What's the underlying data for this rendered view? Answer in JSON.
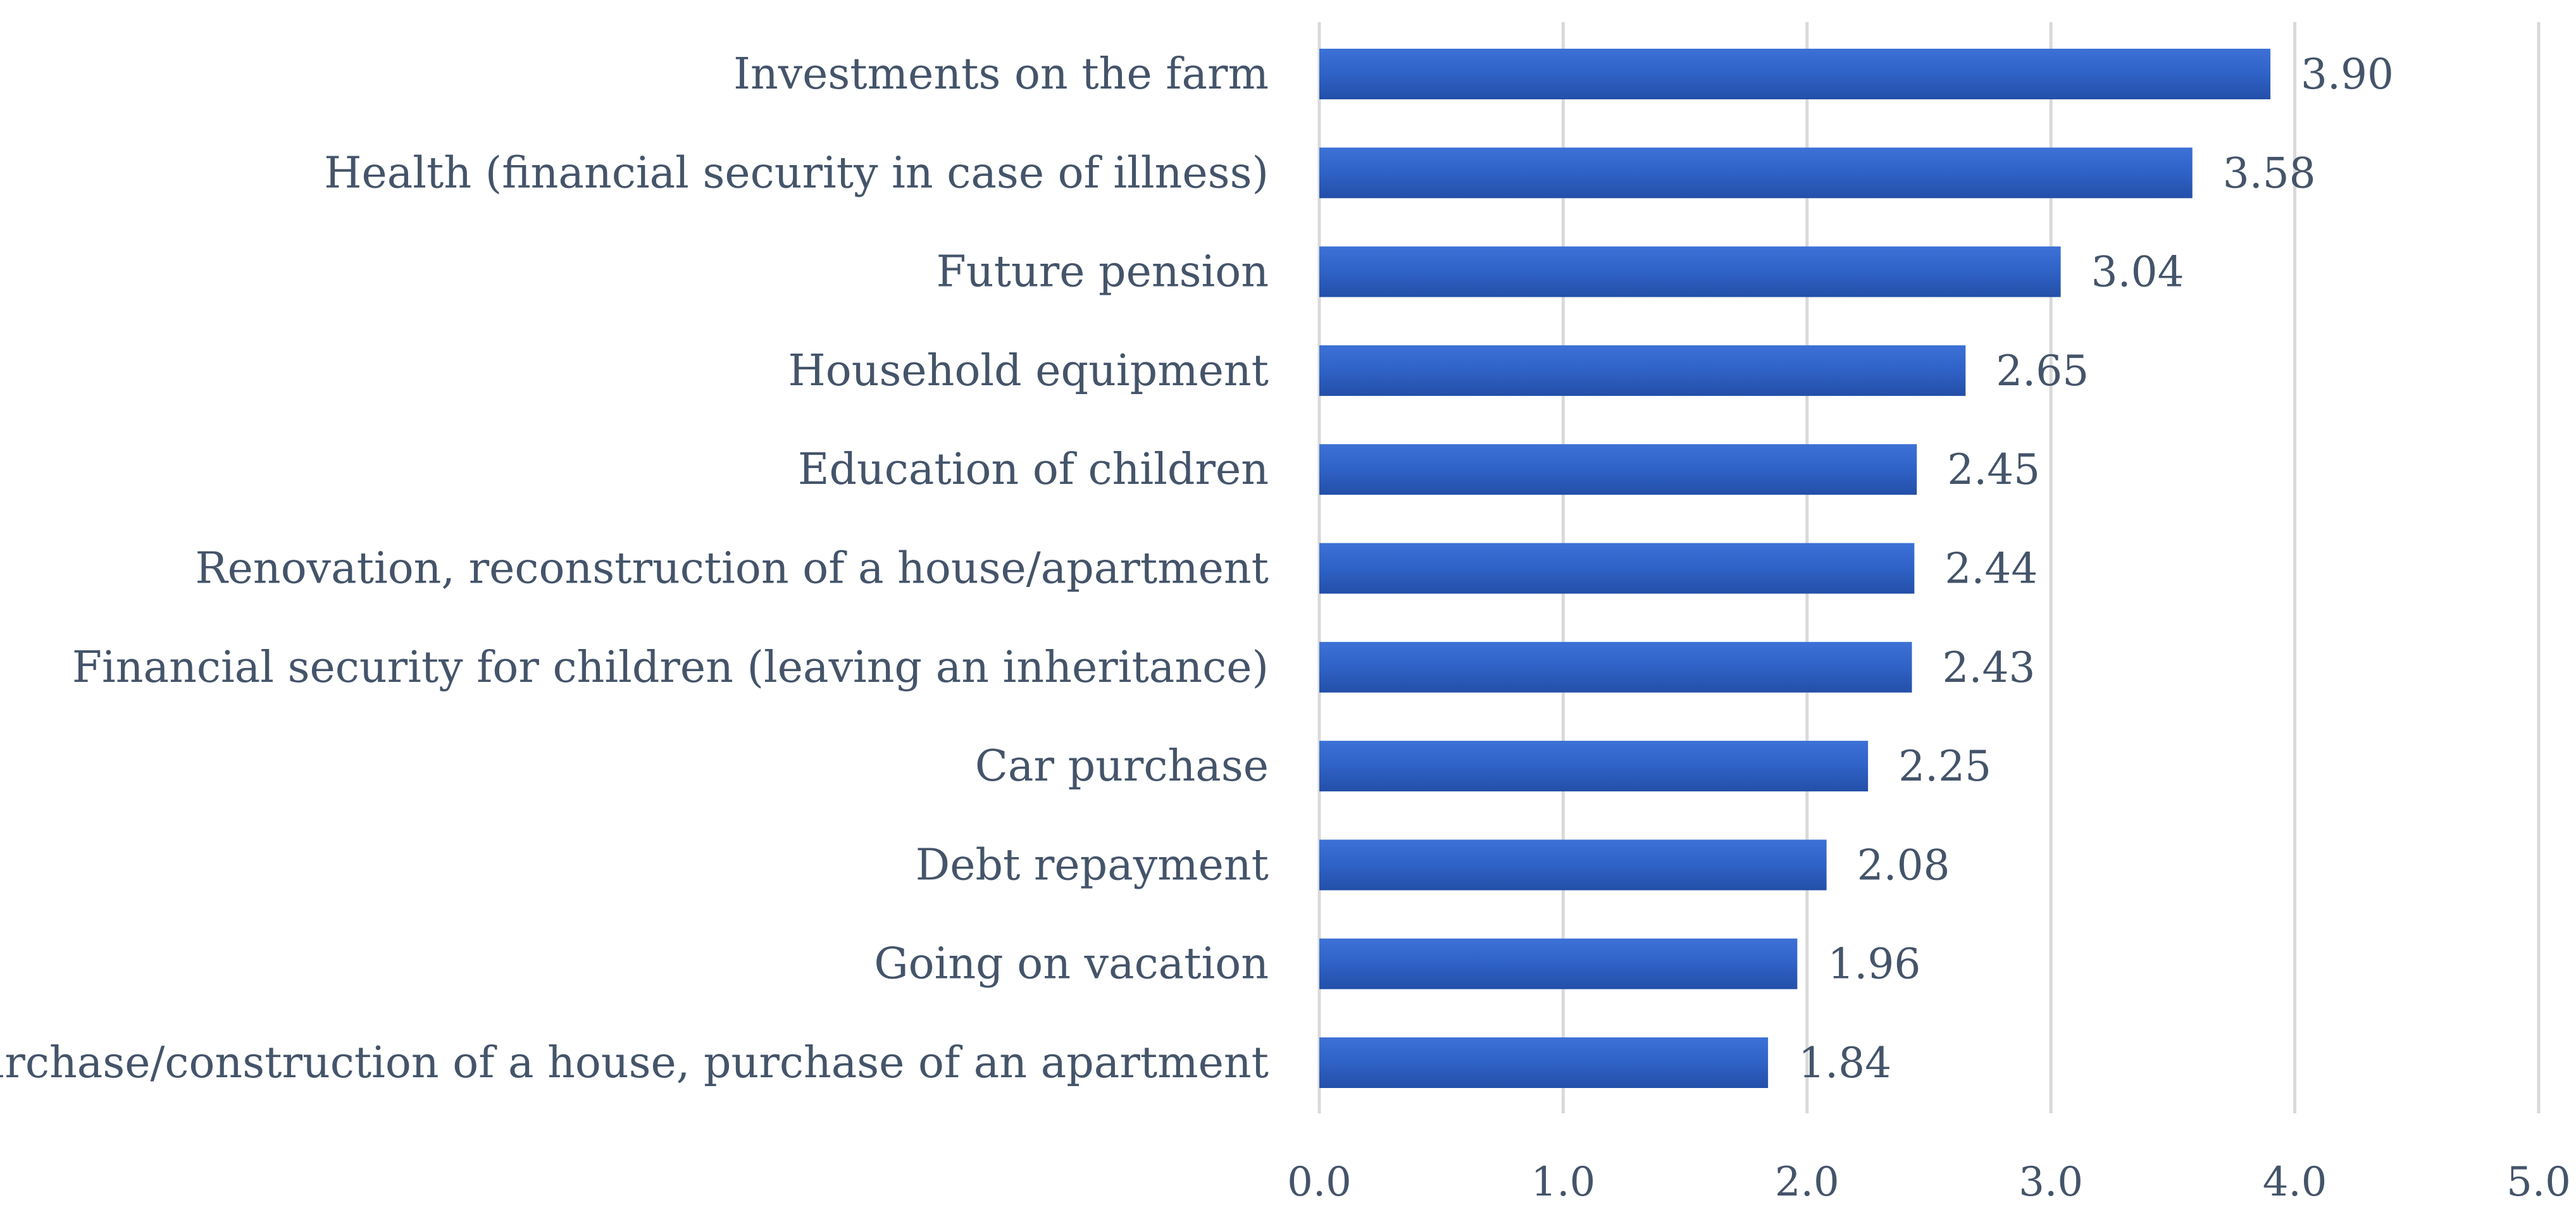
{
  "chart_data": {
    "type": "bar",
    "orientation": "horizontal",
    "title": "",
    "xlabel": "",
    "ylabel": "",
    "categories": [
      "Investments on the farm",
      "Health (financial security in case of illness)",
      "Future pension",
      "Household equipment",
      "Education of children",
      "Renovation, reconstruction of a house/apartment",
      "Financial security for children (leaving an inheritance)",
      "Car purchase",
      "Debt repayment",
      "Going on vacation",
      "Purchase/construction of a house, purchase of an apartment"
    ],
    "values": [
      3.9,
      3.58,
      3.04,
      2.65,
      2.45,
      2.44,
      2.43,
      2.25,
      2.08,
      1.96,
      1.84
    ],
    "value_labels": [
      "3.90",
      "3.58",
      "3.04",
      "2.65",
      "2.45",
      "2.44",
      "2.43",
      "2.25",
      "2.08",
      "1.96",
      "1.84"
    ],
    "xlim": [
      0,
      5
    ],
    "ticks": [
      0,
      1,
      2,
      3,
      4,
      5
    ],
    "tick_labels": [
      "0.0",
      "1.0",
      "2.0",
      "3.0",
      "4.0",
      "5.0"
    ],
    "grid": "vertical",
    "legend": "none",
    "bar_color": "#2f62c6",
    "text_color": "#44546a",
    "grid_color": "#d9d9d9"
  }
}
